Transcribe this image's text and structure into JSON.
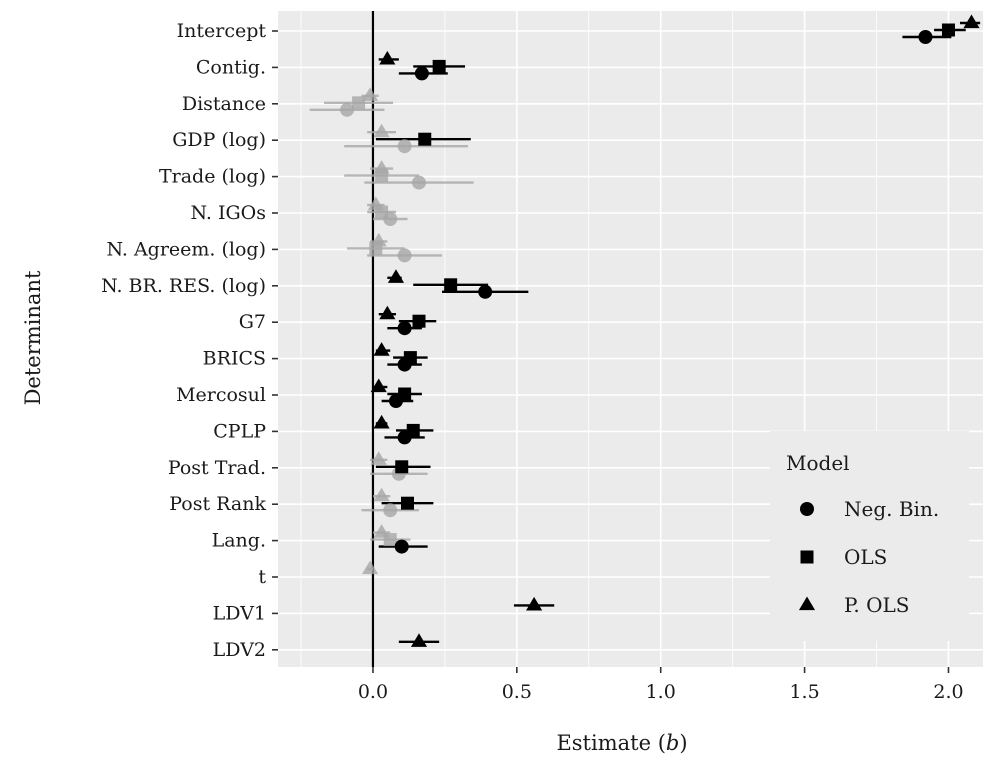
{
  "chart_data": {
    "type": "dot-whisker",
    "xlabel": "Estimate",
    "xlabel_symbol": "b",
    "ylabel": "Determinant",
    "xlim": [
      -0.33,
      2.12
    ],
    "xticks": [
      0.0,
      0.5,
      1.0,
      1.5,
      2.0
    ],
    "xtick_labels": [
      "0.0",
      "0.5",
      "1.0",
      "1.5",
      "2.0"
    ],
    "grid": true,
    "reference_line_x": 0,
    "legend": {
      "title": "Model",
      "placement": "bottom-right",
      "entries": [
        {
          "label": "Neg. Bin.",
          "shape": "circle"
        },
        {
          "label": "OLS",
          "shape": "square"
        },
        {
          "label": "P. OLS",
          "shape": "triangle"
        }
      ]
    },
    "categories": [
      "Intercept",
      "Contig.",
      "Distance",
      "GDP (log)",
      "Trade (log)",
      "N. IGOs",
      "N. Agreem. (log)",
      "N. BR. RES. (log)",
      "G7",
      "BRICS",
      "Mercosul",
      "CPLP",
      "Post Trad.",
      "Post Rank",
      "Lang.",
      "t",
      "LDV1",
      "LDV2"
    ],
    "series": [
      {
        "name": "Neg. Bin.",
        "shape": "circle",
        "points": [
          {
            "term": "Intercept",
            "estimate": 1.92,
            "low": 1.84,
            "high": 2.01,
            "significant": true
          },
          {
            "term": "Contig.",
            "estimate": 0.17,
            "low": 0.09,
            "high": 0.26,
            "significant": true
          },
          {
            "term": "Distance",
            "estimate": -0.09,
            "low": -0.22,
            "high": 0.04,
            "significant": false
          },
          {
            "term": "GDP (log)",
            "estimate": 0.11,
            "low": -0.1,
            "high": 0.33,
            "significant": false
          },
          {
            "term": "Trade (log)",
            "estimate": 0.16,
            "low": -0.03,
            "high": 0.35,
            "significant": false
          },
          {
            "term": "N. IGOs",
            "estimate": 0.06,
            "low": 0.0,
            "high": 0.12,
            "significant": false
          },
          {
            "term": "N. Agreem. (log)",
            "estimate": 0.11,
            "low": -0.02,
            "high": 0.24,
            "significant": false
          },
          {
            "term": "N. BR. RES. (log)",
            "estimate": 0.39,
            "low": 0.24,
            "high": 0.54,
            "significant": true
          },
          {
            "term": "G7",
            "estimate": 0.11,
            "low": 0.05,
            "high": 0.17,
            "significant": true
          },
          {
            "term": "BRICS",
            "estimate": 0.11,
            "low": 0.05,
            "high": 0.17,
            "significant": true
          },
          {
            "term": "Mercosul",
            "estimate": 0.08,
            "low": 0.03,
            "high": 0.14,
            "significant": true
          },
          {
            "term": "CPLP",
            "estimate": 0.11,
            "low": 0.04,
            "high": 0.18,
            "significant": true
          },
          {
            "term": "Post Trad.",
            "estimate": 0.09,
            "low": -0.01,
            "high": 0.19,
            "significant": false
          },
          {
            "term": "Post Rank",
            "estimate": 0.06,
            "low": -0.04,
            "high": 0.16,
            "significant": false
          },
          {
            "term": "Lang.",
            "estimate": 0.1,
            "low": 0.02,
            "high": 0.19,
            "significant": true
          }
        ]
      },
      {
        "name": "OLS",
        "shape": "square",
        "points": [
          {
            "term": "Intercept",
            "estimate": 2.0,
            "low": 1.95,
            "high": 2.06,
            "significant": true
          },
          {
            "term": "Contig.",
            "estimate": 0.23,
            "low": 0.14,
            "high": 0.32,
            "significant": true
          },
          {
            "term": "Distance",
            "estimate": -0.05,
            "low": -0.17,
            "high": 0.07,
            "significant": false
          },
          {
            "term": "GDP (log)",
            "estimate": 0.18,
            "low": 0.01,
            "high": 0.34,
            "significant": true
          },
          {
            "term": "Trade (log)",
            "estimate": 0.03,
            "low": -0.1,
            "high": 0.16,
            "significant": false
          },
          {
            "term": "N. IGOs",
            "estimate": 0.03,
            "low": -0.02,
            "high": 0.08,
            "significant": false
          },
          {
            "term": "N. Agreem. (log)",
            "estimate": 0.01,
            "low": -0.09,
            "high": 0.11,
            "significant": false
          },
          {
            "term": "N. BR. RES. (log)",
            "estimate": 0.27,
            "low": 0.14,
            "high": 0.4,
            "significant": true
          },
          {
            "term": "G7",
            "estimate": 0.16,
            "low": 0.09,
            "high": 0.22,
            "significant": true
          },
          {
            "term": "BRICS",
            "estimate": 0.13,
            "low": 0.07,
            "high": 0.19,
            "significant": true
          },
          {
            "term": "Mercosul",
            "estimate": 0.11,
            "low": 0.05,
            "high": 0.17,
            "significant": true
          },
          {
            "term": "CPLP",
            "estimate": 0.14,
            "low": 0.08,
            "high": 0.21,
            "significant": true
          },
          {
            "term": "Post Trad.",
            "estimate": 0.1,
            "low": 0.01,
            "high": 0.2,
            "significant": true
          },
          {
            "term": "Post Rank",
            "estimate": 0.12,
            "low": 0.03,
            "high": 0.21,
            "significant": true
          },
          {
            "term": "Lang.",
            "estimate": 0.06,
            "low": -0.01,
            "high": 0.13,
            "significant": false
          }
        ]
      },
      {
        "name": "P. OLS",
        "shape": "triangle",
        "points": [
          {
            "term": "Intercept",
            "estimate": 2.08,
            "low": 2.04,
            "high": 2.11,
            "significant": true
          },
          {
            "term": "Contig.",
            "estimate": 0.05,
            "low": 0.02,
            "high": 0.09,
            "significant": true
          },
          {
            "term": "Distance",
            "estimate": -0.01,
            "low": -0.04,
            "high": 0.02,
            "significant": false
          },
          {
            "term": "GDP (log)",
            "estimate": 0.03,
            "low": -0.02,
            "high": 0.08,
            "significant": false
          },
          {
            "term": "Trade (log)",
            "estimate": 0.03,
            "low": -0.01,
            "high": 0.07,
            "significant": false
          },
          {
            "term": "N. IGOs",
            "estimate": 0.01,
            "low": -0.02,
            "high": 0.04,
            "significant": false
          },
          {
            "term": "N. Agreem. (log)",
            "estimate": 0.02,
            "low": -0.01,
            "high": 0.05,
            "significant": false
          },
          {
            "term": "N. BR. RES. (log)",
            "estimate": 0.08,
            "low": 0.05,
            "high": 0.1,
            "significant": true
          },
          {
            "term": "G7",
            "estimate": 0.05,
            "low": 0.02,
            "high": 0.08,
            "significant": true
          },
          {
            "term": "BRICS",
            "estimate": 0.03,
            "low": 0.01,
            "high": 0.06,
            "significant": true
          },
          {
            "term": "Mercosul",
            "estimate": 0.02,
            "low": 0.0,
            "high": 0.05,
            "significant": true
          },
          {
            "term": "CPLP",
            "estimate": 0.03,
            "low": 0.01,
            "high": 0.05,
            "significant": true
          },
          {
            "term": "Post Trad.",
            "estimate": 0.02,
            "low": -0.01,
            "high": 0.05,
            "significant": false
          },
          {
            "term": "Post Rank",
            "estimate": 0.03,
            "low": 0.0,
            "high": 0.06,
            "significant": false
          },
          {
            "term": "Lang.",
            "estimate": 0.03,
            "low": 0.0,
            "high": 0.06,
            "significant": false
          },
          {
            "term": "t",
            "estimate": -0.01,
            "low": -0.02,
            "high": 0.0,
            "significant": false
          },
          {
            "term": "LDV1",
            "estimate": 0.56,
            "low": 0.49,
            "high": 0.63,
            "significant": true
          },
          {
            "term": "LDV2",
            "estimate": 0.16,
            "low": 0.09,
            "high": 0.23,
            "significant": true
          }
        ]
      }
    ],
    "colors": {
      "panel_background": "#ebebeb",
      "grid": "#ffffff",
      "significant": "#000000",
      "non_significant": "#a6a6a6",
      "reference_line": "#000000"
    }
  }
}
